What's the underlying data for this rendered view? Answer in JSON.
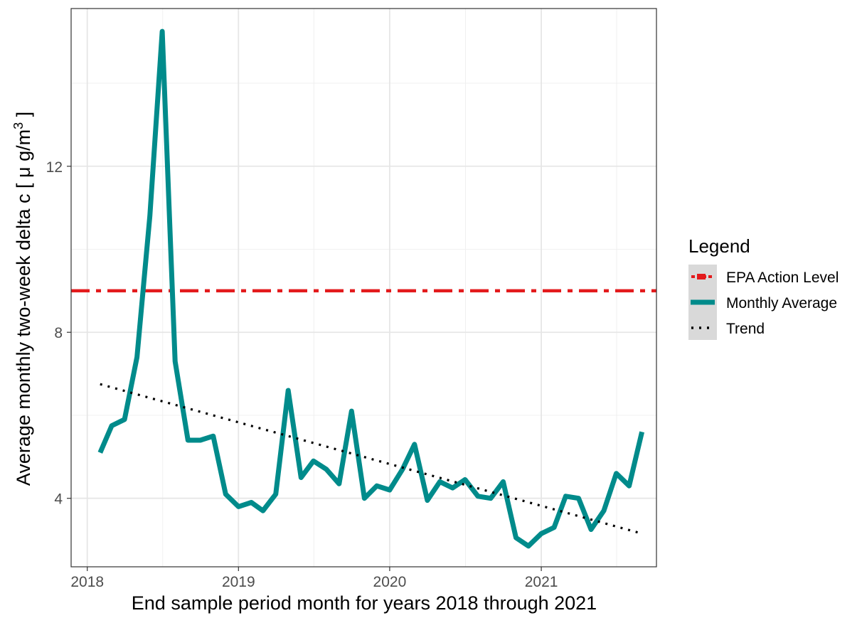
{
  "chart_data": {
    "type": "line",
    "title": "",
    "xlabel": "End sample period month for years 2018 through 2021",
    "ylabel": {
      "main": "Average monthly two-week delta c [ μ g/m",
      "superscript": "3",
      "suffix": " ]"
    },
    "xlim": [
      "2017-11-23",
      "2021-10-06"
    ],
    "ylim": [
      2.35,
      15.8
    ],
    "x_ticks": [
      {
        "date": "2018-01-01",
        "label": "2018"
      },
      {
        "date": "2019-01-01",
        "label": "2019"
      },
      {
        "date": "2020-01-01",
        "label": "2020"
      },
      {
        "date": "2021-01-01",
        "label": "2021"
      }
    ],
    "y_ticks": [
      4,
      8,
      12
    ],
    "y_minor": [
      6,
      10,
      14
    ],
    "grid": true,
    "legend": {
      "title": "Legend",
      "placement": "right",
      "entries": [
        {
          "label": "EPA Action Level",
          "color": "#e31a1c",
          "style": "dashdot"
        },
        {
          "label": "Monthly Average",
          "color": "#008b8b",
          "style": "solid"
        },
        {
          "label": "Trend",
          "color": "#000000",
          "style": "dotted"
        }
      ]
    },
    "reference_line": {
      "name": "EPA Action Level",
      "y": 9.0,
      "color": "#e31a1c"
    },
    "trend": {
      "name": "Trend",
      "x": [
        "2018-02-01",
        "2021-09-01"
      ],
      "y": [
        6.75,
        3.15
      ],
      "color": "#000000"
    },
    "series": [
      {
        "name": "Monthly Average",
        "color": "#008b8b",
        "x": [
          "2018-02-01",
          "2018-03-01",
          "2018-04-01",
          "2018-05-01",
          "2018-06-01",
          "2018-07-01",
          "2018-08-01",
          "2018-09-01",
          "2018-10-01",
          "2018-11-01",
          "2018-12-01",
          "2019-01-01",
          "2019-02-01",
          "2019-03-01",
          "2019-04-01",
          "2019-05-01",
          "2019-06-01",
          "2019-07-01",
          "2019-08-01",
          "2019-09-01",
          "2019-10-01",
          "2019-11-01",
          "2019-12-01",
          "2020-01-01",
          "2020-02-01",
          "2020-03-01",
          "2020-04-01",
          "2020-05-01",
          "2020-06-01",
          "2020-07-01",
          "2020-08-01",
          "2020-09-01",
          "2020-10-01",
          "2020-11-01",
          "2020-12-01",
          "2021-01-01",
          "2021-02-01",
          "2021-03-01",
          "2021-04-01",
          "2021-05-01",
          "2021-06-01",
          "2021-07-01",
          "2021-08-01",
          "2021-09-01"
        ],
        "y": [
          5.1,
          5.75,
          5.9,
          7.4,
          10.8,
          15.25,
          7.3,
          5.4,
          5.4,
          5.5,
          4.1,
          3.8,
          3.9,
          3.7,
          4.1,
          6.6,
          4.5,
          4.9,
          4.7,
          4.35,
          6.1,
          4.0,
          4.3,
          4.2,
          4.7,
          5.3,
          3.95,
          4.4,
          4.25,
          4.45,
          4.05,
          4.0,
          4.4,
          3.05,
          2.85,
          3.15,
          3.3,
          4.05,
          4.0,
          3.25,
          3.7,
          4.6,
          4.3,
          5.6
        ]
      }
    ]
  }
}
